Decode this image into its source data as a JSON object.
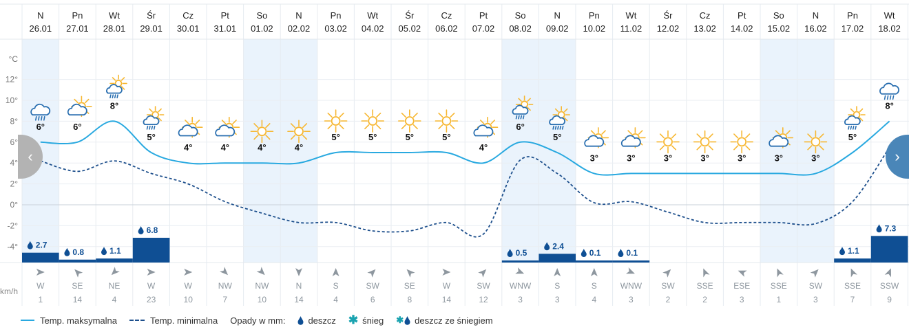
{
  "unit_temp": "°C",
  "unit_wind": "km/h",
  "nav": {
    "prev_icon": "chevron-left-icon",
    "next_icon": "chevron-right-icon"
  },
  "colors": {
    "max_line": "#29a9e0",
    "min_line": "#1d4f8c",
    "precip_bar": "#0f4f94",
    "weekend": "#eaf3fc",
    "icon_sun": "#f7b731",
    "icon_cloud": "#2a6fb0"
  },
  "chart_data": {
    "type": "line",
    "ylim": [
      -5.5,
      14
    ],
    "y_ticks": [
      "12°",
      "10°",
      "8°",
      "6°",
      "4°",
      "2°",
      "0°",
      "-2°",
      "-4°"
    ],
    "y_tick_values": [
      12,
      10,
      8,
      6,
      4,
      2,
      0,
      -2,
      -4
    ],
    "days": [
      {
        "dow": "N",
        "date": "26.01",
        "weekend": true,
        "icon": "rain-cloud-icon",
        "max": 6,
        "min": 4.2,
        "precip": 2.7,
        "wind_dir": "W",
        "wind_speed": 1,
        "wind_deg": 270
      },
      {
        "dow": "Pn",
        "date": "27.01",
        "weekend": false,
        "icon": "sun-behind-cloud-icon",
        "max": 6,
        "min": 3.2,
        "precip": 0.8,
        "wind_dir": "SE",
        "wind_speed": 14,
        "wind_deg": 135
      },
      {
        "dow": "Wt",
        "date": "28.01",
        "weekend": false,
        "icon": "sun-rain-cloud-icon",
        "max": 8,
        "min": 4.2,
        "precip": 1.1,
        "wind_dir": "NE",
        "wind_speed": 4,
        "wind_deg": 45
      },
      {
        "dow": "Śr",
        "date": "29.01",
        "weekend": false,
        "icon": "sun-rain-cloud-icon",
        "max": 5,
        "min": 3,
        "precip": 6.8,
        "wind_dir": "W",
        "wind_speed": 23,
        "wind_deg": 270
      },
      {
        "dow": "Cz",
        "date": "30.01",
        "weekend": false,
        "icon": "sun-behind-cloud-icon",
        "max": 4,
        "min": 2,
        "precip": null,
        "wind_dir": "W",
        "wind_speed": 10,
        "wind_deg": 270
      },
      {
        "dow": "Pt",
        "date": "31.01",
        "weekend": false,
        "icon": "sun-behind-cloud-icon",
        "max": 4,
        "min": 0.3,
        "precip": null,
        "wind_dir": "NW",
        "wind_speed": 7,
        "wind_deg": 315
      },
      {
        "dow": "So",
        "date": "01.02",
        "weekend": true,
        "icon": "sun-icon",
        "max": 4,
        "min": -0.8,
        "precip": null,
        "wind_dir": "NW",
        "wind_speed": 10,
        "wind_deg": 315
      },
      {
        "dow": "N",
        "date": "02.02",
        "weekend": true,
        "icon": "sun-icon",
        "max": 4,
        "min": -1.7,
        "precip": null,
        "wind_dir": "N",
        "wind_speed": 14,
        "wind_deg": 0
      },
      {
        "dow": "Pn",
        "date": "03.02",
        "weekend": false,
        "icon": "sun-icon",
        "max": 5,
        "min": -1.7,
        "precip": null,
        "wind_dir": "S",
        "wind_speed": 4,
        "wind_deg": 180
      },
      {
        "dow": "Wt",
        "date": "04.02",
        "weekend": false,
        "icon": "sun-icon",
        "max": 5,
        "min": -2.5,
        "precip": null,
        "wind_dir": "SW",
        "wind_speed": 6,
        "wind_deg": 225
      },
      {
        "dow": "Śr",
        "date": "05.02",
        "weekend": false,
        "icon": "sun-icon",
        "max": 5,
        "min": -2.5,
        "precip": null,
        "wind_dir": "SE",
        "wind_speed": 8,
        "wind_deg": 135
      },
      {
        "dow": "Cz",
        "date": "06.02",
        "weekend": false,
        "icon": "sun-icon",
        "max": 5,
        "min": -1.7,
        "precip": null,
        "wind_dir": "W",
        "wind_speed": 14,
        "wind_deg": 270
      },
      {
        "dow": "Pt",
        "date": "07.02",
        "weekend": false,
        "icon": "sun-behind-cloud-icon",
        "max": 4,
        "min": -2.8,
        "precip": null,
        "wind_dir": "SW",
        "wind_speed": 12,
        "wind_deg": 225
      },
      {
        "dow": "So",
        "date": "08.02",
        "weekend": true,
        "icon": "sun-rain-cloud-icon",
        "max": 6,
        "min": 4.3,
        "precip": 0.5,
        "wind_dir": "WNW",
        "wind_speed": 3,
        "wind_deg": 292
      },
      {
        "dow": "N",
        "date": "09.02",
        "weekend": true,
        "icon": "sun-heavy-rain-icon",
        "max": 5,
        "min": 3,
        "precip": 2.4,
        "wind_dir": "S",
        "wind_speed": 3,
        "wind_deg": 180
      },
      {
        "dow": "Pn",
        "date": "10.02",
        "weekend": false,
        "icon": "sun-behind-cloud-icon",
        "max": 3,
        "min": 0.2,
        "precip": 0.1,
        "wind_dir": "S",
        "wind_speed": 4,
        "wind_deg": 180
      },
      {
        "dow": "Wt",
        "date": "11.02",
        "weekend": false,
        "icon": "sun-behind-cloud-icon",
        "max": 3,
        "min": 0.3,
        "precip": 0.1,
        "wind_dir": "WNW",
        "wind_speed": 3,
        "wind_deg": 292
      },
      {
        "dow": "Śr",
        "date": "12.02",
        "weekend": false,
        "icon": "sun-icon",
        "max": 3,
        "min": -0.7,
        "precip": null,
        "wind_dir": "SW",
        "wind_speed": 2,
        "wind_deg": 225
      },
      {
        "dow": "Cz",
        "date": "13.02",
        "weekend": false,
        "icon": "sun-icon",
        "max": 3,
        "min": -1.7,
        "precip": null,
        "wind_dir": "SSE",
        "wind_speed": 2,
        "wind_deg": 157
      },
      {
        "dow": "Pt",
        "date": "14.02",
        "weekend": false,
        "icon": "sun-icon",
        "max": 3,
        "min": -1.7,
        "precip": null,
        "wind_dir": "ESE",
        "wind_speed": 3,
        "wind_deg": 112
      },
      {
        "dow": "So",
        "date": "15.02",
        "weekend": true,
        "icon": "sun-behind-cloud-icon",
        "max": 3,
        "min": -1.7,
        "precip": null,
        "wind_dir": "SSE",
        "wind_speed": 1,
        "wind_deg": 157
      },
      {
        "dow": "N",
        "date": "16.02",
        "weekend": true,
        "icon": "sun-icon",
        "max": 3,
        "min": -1.8,
        "precip": null,
        "wind_dir": "SW",
        "wind_speed": 3,
        "wind_deg": 225
      },
      {
        "dow": "Pn",
        "date": "17.02",
        "weekend": false,
        "icon": "sun-rain-cloud-icon",
        "max": 5,
        "min": 0.3,
        "precip": 1.1,
        "wind_dir": "SSE",
        "wind_speed": 7,
        "wind_deg": 157
      },
      {
        "dow": "Wt",
        "date": "18.02",
        "weekend": false,
        "icon": "rain-cloud-icon",
        "max": 8,
        "min": 5.5,
        "precip": 7.3,
        "wind_dir": "SSW",
        "wind_speed": 9,
        "wind_deg": 202
      }
    ]
  },
  "legend": {
    "max_label": "Temp. maksymalna",
    "min_label": "Temp. minimalna",
    "precip_title": "Opady w mm:",
    "rain_label": "deszcz",
    "snow_label": "śnieg",
    "mixed_label": "deszcz ze śniegiem"
  }
}
